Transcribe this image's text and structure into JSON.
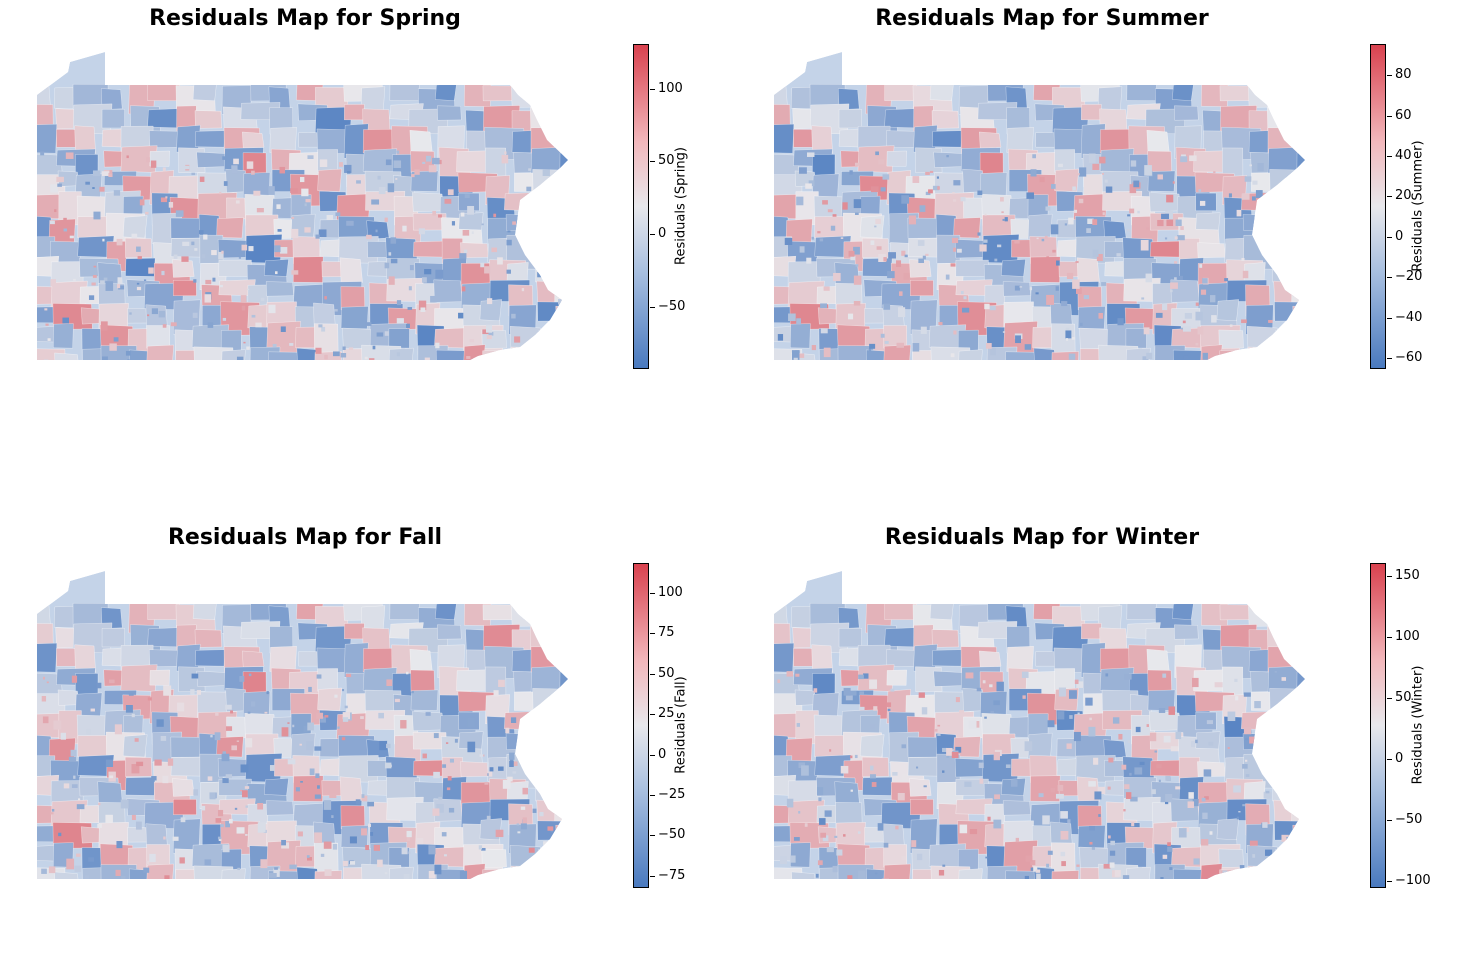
{
  "colors": {
    "negative": "#4a7abf",
    "neutral": "#e8e8ec",
    "positive": "#d9424f"
  },
  "panels": [
    {
      "title": "Residuals Map for Spring",
      "colorbar_label": "Residuals (Spring)",
      "range": [
        -92,
        130
      ],
      "ticks": [
        "100",
        "50",
        "0",
        "−50"
      ],
      "tick_values": [
        100,
        50,
        0,
        -50
      ]
    },
    {
      "title": "Residuals Map for Summer",
      "colorbar_label": "Residuals (Summer)",
      "range": [
        -65,
        95
      ],
      "ticks": [
        "80",
        "60",
        "40",
        "20",
        "0",
        "−20",
        "−40",
        "−60"
      ],
      "tick_values": [
        80,
        60,
        40,
        20,
        0,
        -20,
        -40,
        -60
      ]
    },
    {
      "title": "Residuals Map for Fall",
      "colorbar_label": "Residuals (Fall)",
      "range": [
        -82,
        118
      ],
      "ticks": [
        "100",
        "75",
        "50",
        "25",
        "0",
        "−25",
        "−50",
        "−75"
      ],
      "tick_values": [
        100,
        75,
        50,
        25,
        0,
        -25,
        -50,
        -75
      ]
    },
    {
      "title": "Residuals Map for Winter",
      "colorbar_label": "Residuals (Winter)",
      "range": [
        -105,
        160
      ],
      "ticks": [
        "150",
        "100",
        "50",
        "0",
        "−50",
        "−100"
      ],
      "tick_values": [
        150,
        100,
        50,
        0,
        -50,
        -100
      ]
    }
  ]
}
